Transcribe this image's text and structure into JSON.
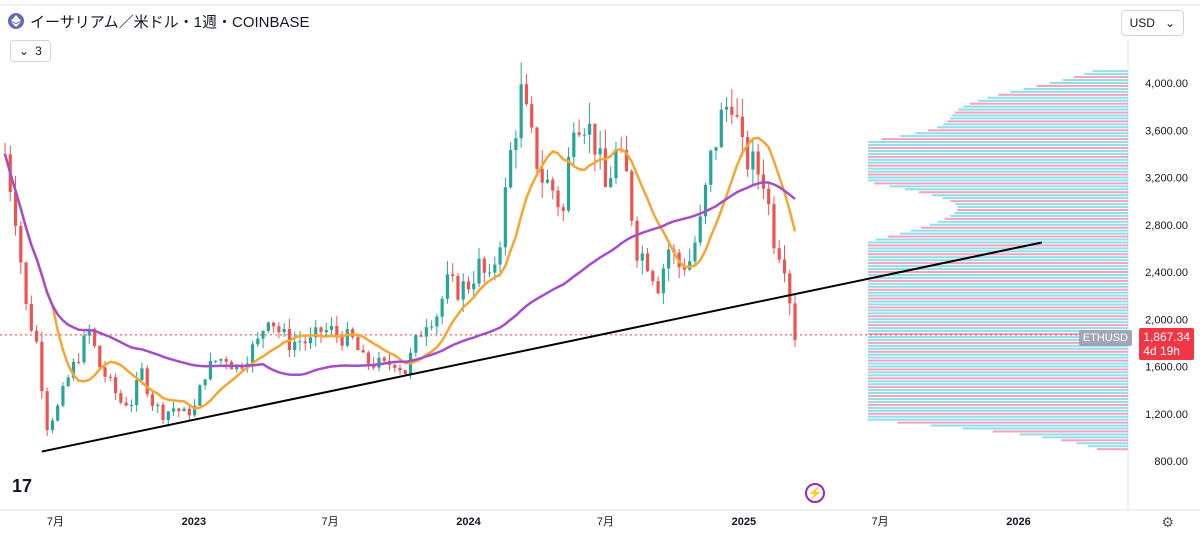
{
  "header": {
    "title": "イーサリアム／米ドル・1週・COINBASE",
    "icon": "ethereum-icon"
  },
  "indicators": {
    "count_label": "3",
    "icon": "chevron-down-icon"
  },
  "currency": {
    "label": "USD",
    "icon": "chevron-down-icon"
  },
  "price": {
    "symbol_tag": "ETHUSD",
    "last": "1,867.34",
    "countdown": "4d 19h"
  },
  "logo": {
    "text": "17"
  },
  "colors": {
    "up": "#26a69a",
    "down": "#ef5350",
    "ma_fast": "#f7a532",
    "ma_slow": "#a64dc8",
    "trend": "#000000",
    "vp_up": "#7fd7e6",
    "vp_down": "#f48fb1"
  },
  "chart_data": {
    "type": "candlestick",
    "y_axis": {
      "ticks": [
        "4,000.00",
        "3,600.00",
        "3,200.00",
        "2,800.00",
        "2,400.00",
        "2,000.00",
        "1,600.00",
        "1,200.00",
        "800.00"
      ],
      "values": [
        4000,
        3600,
        3200,
        2800,
        2400,
        2000,
        1600,
        1200,
        800
      ]
    },
    "x_axis": {
      "ticks": [
        "7月",
        "2023",
        "7月",
        "2024",
        "7月",
        "2025",
        "7月",
        "2026"
      ]
    },
    "close_series": [
      [
        "2022-04-25",
        3400
      ],
      [
        "2022-05-09",
        2900
      ],
      [
        "2022-05-23",
        2100
      ],
      [
        "2022-06-06",
        1800
      ],
      [
        "2022-06-20",
        1100
      ],
      [
        "2022-07-04",
        1250
      ],
      [
        "2022-07-18",
        1500
      ],
      [
        "2022-08-01",
        1700
      ],
      [
        "2022-08-15",
        1900
      ],
      [
        "2022-08-29",
        1600
      ],
      [
        "2022-09-12",
        1450
      ],
      [
        "2022-09-26",
        1300
      ],
      [
        "2022-10-10",
        1300
      ],
      [
        "2022-10-24",
        1550
      ],
      [
        "2022-11-07",
        1300
      ],
      [
        "2022-11-21",
        1200
      ],
      [
        "2022-12-05",
        1250
      ],
      [
        "2022-12-19",
        1200
      ],
      [
        "2023-01-02",
        1250
      ],
      [
        "2023-01-16",
        1550
      ],
      [
        "2023-01-30",
        1650
      ],
      [
        "2023-02-13",
        1680
      ],
      [
        "2023-02-27",
        1580
      ],
      [
        "2023-03-13",
        1700
      ],
      [
        "2023-03-27",
        1800
      ],
      [
        "2023-04-10",
        2050
      ],
      [
        "2023-04-24",
        1900
      ],
      [
        "2023-05-08",
        1800
      ],
      [
        "2023-05-22",
        1820
      ],
      [
        "2023-06-05",
        1800
      ],
      [
        "2023-06-19",
        1900
      ],
      [
        "2023-07-03",
        1900
      ],
      [
        "2023-07-17",
        1850
      ],
      [
        "2023-07-31",
        1820
      ],
      [
        "2023-08-14",
        1650
      ],
      [
        "2023-08-28",
        1630
      ],
      [
        "2023-09-11",
        1600
      ],
      [
        "2023-09-25",
        1650
      ],
      [
        "2023-10-09",
        1560
      ],
      [
        "2023-10-23",
        1800
      ],
      [
        "2023-11-06",
        2000
      ],
      [
        "2023-11-20",
        2050
      ],
      [
        "2023-12-04",
        2300
      ],
      [
        "2023-12-18",
        2250
      ],
      [
        "2024-01-01",
        2300
      ],
      [
        "2024-01-15",
        2450
      ],
      [
        "2024-01-29",
        2300
      ],
      [
        "2024-02-12",
        2700
      ],
      [
        "2024-02-26",
        3400
      ],
      [
        "2024-03-11",
        3900
      ],
      [
        "2024-03-25",
        3500
      ],
      [
        "2024-04-08",
        3200
      ],
      [
        "2024-04-22",
        3100
      ],
      [
        "2024-05-06",
        2900
      ],
      [
        "2024-05-20",
        3750
      ],
      [
        "2024-06-03",
        3700
      ],
      [
        "2024-06-17",
        3500
      ],
      [
        "2024-07-01",
        3100
      ],
      [
        "2024-07-15",
        3400
      ],
      [
        "2024-07-29",
        3200
      ],
      [
        "2024-08-12",
        2600
      ],
      [
        "2024-08-26",
        2500
      ],
      [
        "2024-09-09",
        2300
      ],
      [
        "2024-09-23",
        2600
      ],
      [
        "2024-10-07",
        2450
      ],
      [
        "2024-10-21",
        2500
      ],
      [
        "2024-11-04",
        2800
      ],
      [
        "2024-11-18",
        3350
      ],
      [
        "2024-12-02",
        3700
      ],
      [
        "2024-12-16",
        3900
      ],
      [
        "2024-12-30",
        3400
      ],
      [
        "2025-01-13",
        3300
      ],
      [
        "2025-01-27",
        3200
      ],
      [
        "2025-02-10",
        2700
      ],
      [
        "2025-02-24",
        2500
      ],
      [
        "2025-03-10",
        1867
      ]
    ],
    "moving_average_fast": "orange",
    "moving_average_slow": "purple",
    "trendline": {
      "from": [
        "2022-06-13",
        880
      ],
      "to": [
        "2026-02-01",
        2650
      ]
    },
    "last_price": 1867.34
  }
}
